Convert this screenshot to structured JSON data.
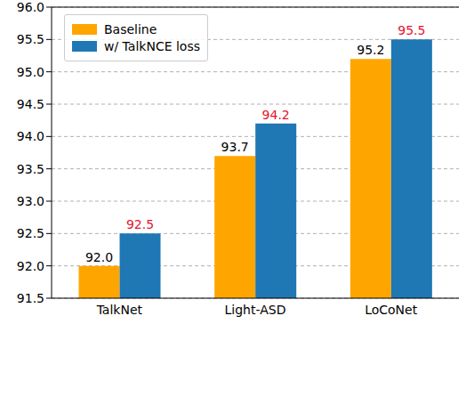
{
  "chart_data": {
    "type": "bar",
    "categories": [
      "TalkNet",
      "Light-ASD",
      "LoCoNet"
    ],
    "series": [
      {
        "name": "Baseline",
        "color": "#ffa500",
        "values": [
          92.0,
          93.7,
          95.2
        ],
        "value_labels": [
          "92.0",
          "93.7",
          "95.2"
        ]
      },
      {
        "name": "w/ TalkNCE loss",
        "color": "#1f77b4",
        "values": [
          92.5,
          94.2,
          95.5
        ],
        "value_labels": [
          "92.5",
          "94.2",
          "95.5"
        ]
      }
    ],
    "ylim": [
      91.5,
      96.0
    ],
    "yticks": [
      91.5,
      {
        "value": 92.0,
        "label": "92.0"
      },
      92.5,
      {
        "value": 93.0,
        "label": "93.0"
      },
      93.5,
      {
        "value": 94.0,
        "label": "94.0"
      },
      94.5,
      {
        "value": 95.0,
        "label": "95.0"
      },
      95.5,
      {
        "value": 96.0,
        "label": "96.0"
      }
    ],
    "grid": true,
    "legend": "upper left",
    "data_labels": true
  }
}
